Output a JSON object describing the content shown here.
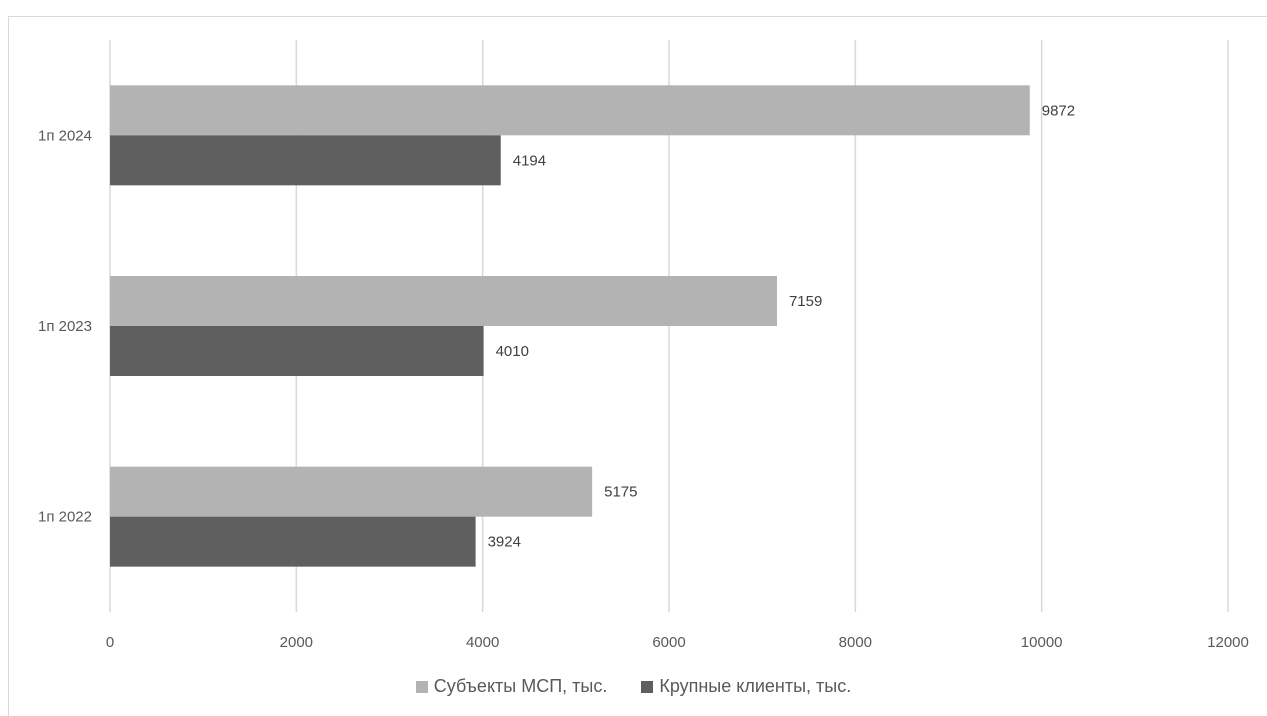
{
  "chart_data": {
    "type": "bar",
    "orientation": "horizontal",
    "categories": [
      "1п 2022",
      "1п 2023",
      "1п 2024"
    ],
    "series": [
      {
        "name": "Субъекты МСП, тыс.",
        "values": [
          5175,
          7159,
          9872
        ],
        "color": "#b3b3b3"
      },
      {
        "name": "Крупные клиенты, тыс.",
        "values": [
          3924,
          4010,
          4194
        ],
        "color": "#5f5f5f"
      }
    ],
    "xlim": [
      0,
      12000
    ],
    "x_ticks": [
      "0",
      "2000",
      "4000",
      "6000",
      "8000",
      "10000",
      "12000"
    ],
    "grid": true,
    "legend_position": "bottom",
    "title": "",
    "xlabel": "",
    "ylabel": ""
  }
}
